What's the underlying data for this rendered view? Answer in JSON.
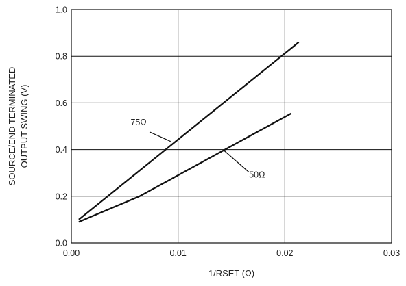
{
  "chart_data": {
    "type": "line",
    "xlabel": "1/RSET (Ω)",
    "ylabel_lines": [
      "SOURCE/END TERMINATED",
      "OUTPUT SWING (V)"
    ],
    "xlim": [
      0,
      0.03
    ],
    "ylim": [
      0,
      1.0
    ],
    "x_ticks": [
      0,
      0.01,
      0.02,
      0.03
    ],
    "x_tick_labels": [
      "0.00",
      "0.01",
      "0.02",
      "0.03"
    ],
    "y_ticks": [
      0,
      0.2,
      0.4,
      0.6,
      0.8,
      1.0
    ],
    "y_tick_labels": [
      "0.0",
      "0.2",
      "0.4",
      "0.6",
      "0.8",
      "1.0"
    ],
    "grid": true,
    "legend": "none",
    "series": [
      {
        "name": "75Ω",
        "x": [
          0.0007,
          0.0213
        ],
        "y": [
          0.1,
          0.86
        ]
      },
      {
        "name": "50Ω",
        "x": [
          0.0007,
          0.0064,
          0.0206
        ],
        "y": [
          0.09,
          0.2,
          0.555
        ]
      }
    ],
    "annotations": [
      {
        "text": "75Ω",
        "anchor_series": 0,
        "point_x": 0.0093,
        "point_y": 0.435,
        "label_x": 0.0063,
        "label_y": 0.505
      },
      {
        "text": "50Ω",
        "anchor_series": 1,
        "point_x": 0.0142,
        "point_y": 0.4,
        "label_x": 0.0174,
        "label_y": 0.28
      }
    ]
  }
}
